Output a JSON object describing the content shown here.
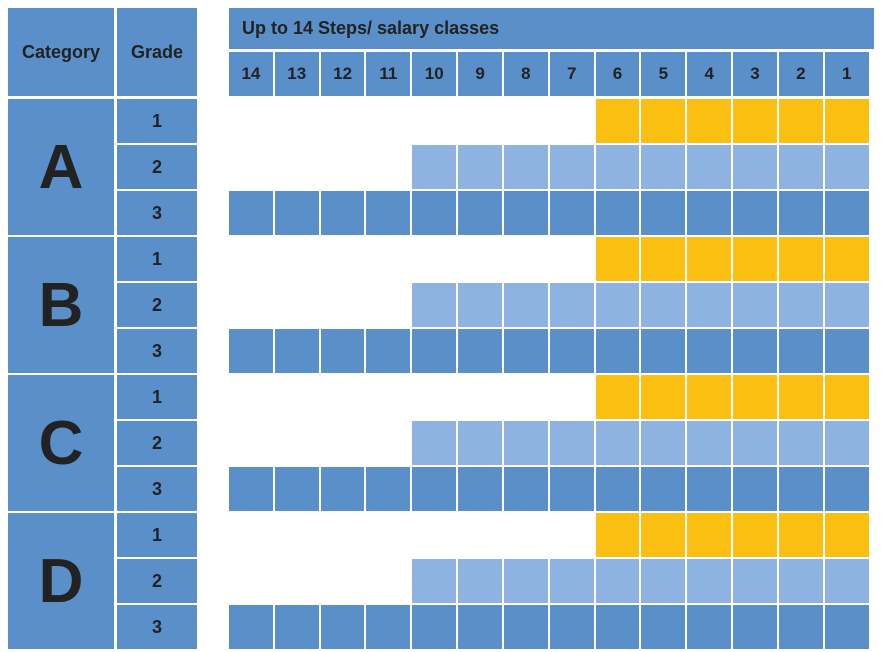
{
  "header": {
    "category_label": "Category",
    "grade_label": "Grade",
    "steps_title": "Up to 14 Steps/ salary classes"
  },
  "steps": [
    "14",
    "13",
    "12",
    "11",
    "10",
    "9",
    "8",
    "7",
    "6",
    "5",
    "4",
    "3",
    "2",
    "1"
  ],
  "categories": [
    {
      "name": "A",
      "grades": [
        {
          "label": "1",
          "steps_available": 6
        },
        {
          "label": "2",
          "steps_available": 10
        },
        {
          "label": "3",
          "steps_available": 14
        }
      ]
    },
    {
      "name": "B",
      "grades": [
        {
          "label": "1",
          "steps_available": 6
        },
        {
          "label": "2",
          "steps_available": 10
        },
        {
          "label": "3",
          "steps_available": 14
        }
      ]
    },
    {
      "name": "C",
      "grades": [
        {
          "label": "1",
          "steps_available": 6
        },
        {
          "label": "2",
          "steps_available": 10
        },
        {
          "label": "3",
          "steps_available": 14
        }
      ]
    },
    {
      "name": "D",
      "grades": [
        {
          "label": "1",
          "steps_available": 6
        },
        {
          "label": "2",
          "steps_available": 10
        },
        {
          "label": "3",
          "steps_available": 14
        }
      ]
    }
  ],
  "colors": {
    "header_blue": "#5b8fc9",
    "grade1_fill": "#fbbf12",
    "grade2_fill": "#8fb3e0",
    "grade3_fill": "#5b8fc9",
    "empty": "#ffffff",
    "text": "#222222"
  }
}
